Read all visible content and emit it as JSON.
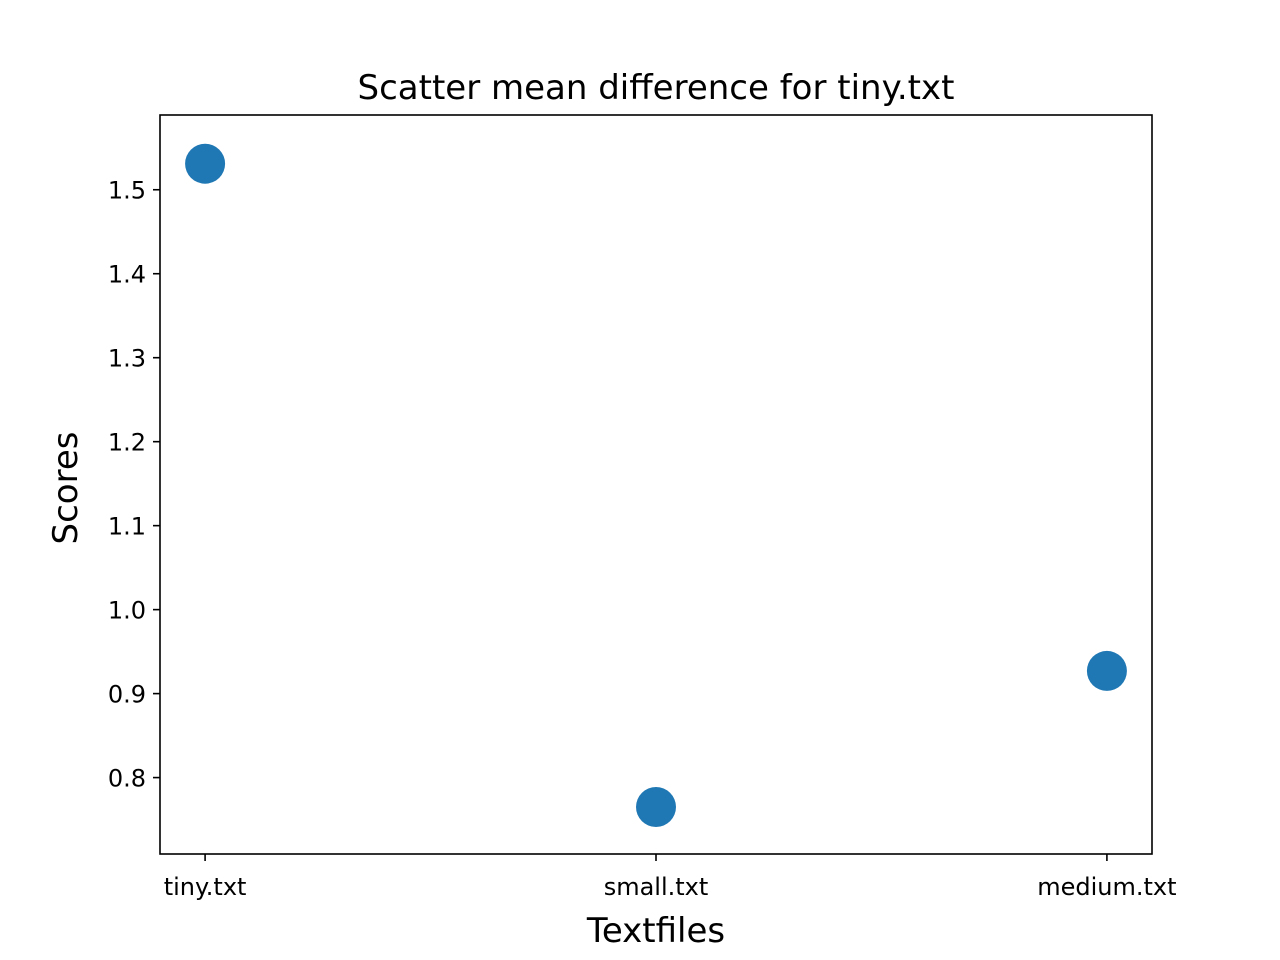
{
  "chart_data": {
    "type": "scatter",
    "title": "Scatter mean difference for tiny.txt",
    "xlabel": "Textfiles",
    "ylabel": "Scores",
    "categories": [
      "tiny.txt",
      "small.txt",
      "medium.txt"
    ],
    "series": [
      {
        "values": [
          1.531,
          0.765,
          0.927
        ],
        "color": "#1f77b4"
      }
    ],
    "ylim": [
      0.709,
      1.589
    ],
    "yticks": [
      0.8,
      0.9,
      1.0,
      1.1,
      1.2,
      1.3,
      1.4,
      1.5
    ],
    "ytick_labels": [
      "0.8",
      "0.9",
      "1.0",
      "1.1",
      "1.2",
      "1.3",
      "1.4",
      "1.5"
    ],
    "grid": false,
    "legend": "none"
  }
}
